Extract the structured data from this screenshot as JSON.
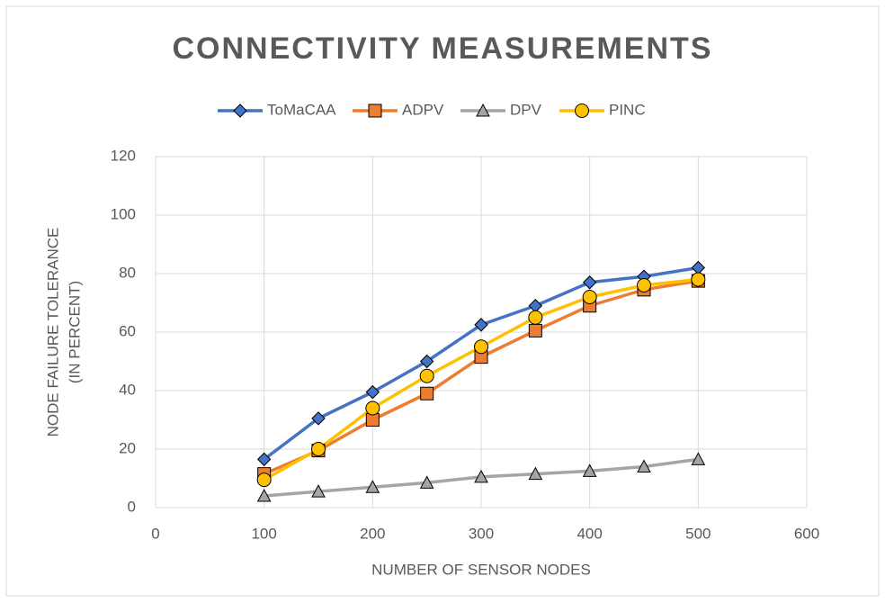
{
  "chart_data": {
    "type": "line",
    "title": "CONNECTIVITY MEASUREMENTS",
    "xlabel": "NUMBER OF SENSOR NODES",
    "ylabel": [
      "NODE FAILURE TOLERANCE",
      "(IN PERCENT)"
    ],
    "x": [
      100,
      150,
      200,
      250,
      300,
      350,
      400,
      450,
      500
    ],
    "series": [
      {
        "name": "ToMaCAA",
        "color": "#4472c4",
        "marker": "diamond",
        "values": [
          16.5,
          30.5,
          39.5,
          50,
          62.5,
          69,
          77,
          79,
          82
        ]
      },
      {
        "name": "ADPV",
        "color": "#ed7d31",
        "marker": "square",
        "values": [
          11.5,
          19.5,
          30,
          39,
          51.5,
          60.5,
          69,
          74.5,
          77.5
        ]
      },
      {
        "name": "DPV",
        "color": "#a5a5a5",
        "marker": "triangle",
        "values": [
          4,
          5.5,
          7,
          8.5,
          10.5,
          11.5,
          12.5,
          14,
          16.5
        ]
      },
      {
        "name": "PINC",
        "color": "#ffc000",
        "marker": "circle",
        "values": [
          9.5,
          20,
          34,
          45,
          55,
          65,
          72,
          76,
          78
        ]
      }
    ],
    "xlim": [
      0,
      600
    ],
    "xticks": [
      0,
      100,
      200,
      300,
      400,
      500,
      600
    ],
    "ylim": [
      0,
      120
    ],
    "yticks": [
      0,
      20,
      40,
      60,
      80,
      100,
      120
    ],
    "grid": true,
    "legend": "top"
  }
}
